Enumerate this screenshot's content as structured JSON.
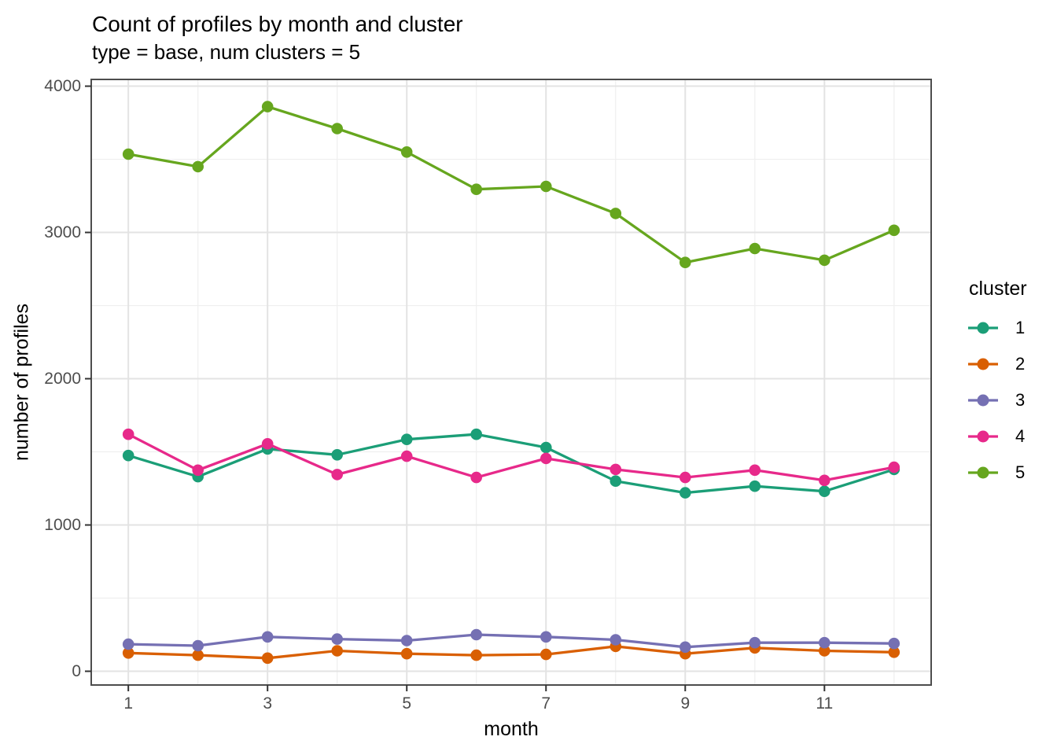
{
  "chart_data": {
    "type": "line",
    "title": "Count of profiles by month and cluster",
    "subtitle": "type = base, num clusters = 5",
    "xlabel": "month",
    "ylabel": "number of profiles",
    "legend_title": "cluster",
    "legend_position": "right",
    "grid": true,
    "x": [
      1,
      2,
      3,
      4,
      5,
      6,
      7,
      8,
      9,
      10,
      11,
      12
    ],
    "axes": {
      "x_ticks": [
        1,
        3,
        5,
        7,
        9,
        11
      ],
      "x_minor": [
        2,
        4,
        6,
        8,
        10,
        12
      ],
      "y_ticks": [
        0,
        1000,
        2000,
        3000,
        4000
      ],
      "y_minor": [
        500,
        1500,
        2500,
        3500
      ],
      "xlim": [
        0.467,
        12.533
      ],
      "ylim": [
        -94,
        4046
      ]
    },
    "series": [
      {
        "name": "1",
        "color": "#1B9E77",
        "values": [
          1475,
          1330,
          1520,
          1480,
          1585,
          1620,
          1530,
          1300,
          1220,
          1265,
          1230,
          1380
        ]
      },
      {
        "name": "2",
        "color": "#D95F02",
        "values": [
          125,
          110,
          90,
          140,
          120,
          110,
          115,
          170,
          120,
          160,
          140,
          130
        ]
      },
      {
        "name": "3",
        "color": "#7570B3",
        "values": [
          185,
          175,
          235,
          220,
          210,
          250,
          235,
          215,
          165,
          195,
          195,
          190
        ]
      },
      {
        "name": "4",
        "color": "#E7298A",
        "values": [
          1620,
          1375,
          1555,
          1345,
          1470,
          1325,
          1455,
          1380,
          1325,
          1375,
          1305,
          1395
        ]
      },
      {
        "name": "5",
        "color": "#66A61E",
        "values": [
          3535,
          3450,
          3860,
          3710,
          3550,
          3295,
          3315,
          3130,
          2795,
          2890,
          2810,
          3015
        ]
      }
    ],
    "style_colors": {
      "tick_label": "#4D4D4D",
      "axis_tick": "#333333",
      "panel_border": "#4D4D4D",
      "grid_major": "#E3E3E3",
      "grid_minor": "#EFEFEF"
    }
  }
}
